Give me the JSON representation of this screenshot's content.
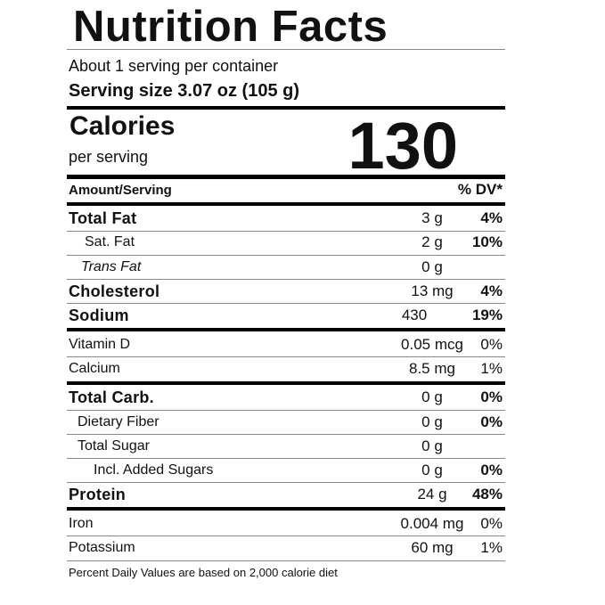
{
  "header": {
    "title": "Nutrition Facts",
    "servings": "About 1 serving per container",
    "serving_size": "Serving size 3.07 oz (105 g)"
  },
  "calories": {
    "label": "Calories",
    "per": "per serving",
    "value": 130
  },
  "columns": {
    "amount": "Amount/Serving",
    "dv": "% DV*"
  },
  "rows": [
    {
      "name": "Total Fat",
      "amount": "3 g",
      "dv": "4%"
    },
    {
      "name": "Sat. Fat",
      "amount": "2 g",
      "dv": "10%"
    },
    {
      "name": "Trans Fat",
      "amount": "0 g"
    },
    {
      "name": "Cholesterol",
      "amount": "13 mg",
      "dv": "4%"
    },
    {
      "name": "Sodium",
      "amount": "430",
      "dv": "19%"
    },
    {
      "name": "Vitamin D",
      "amount": "0.05 mcg",
      "dv": "0%"
    },
    {
      "name": "Calcium",
      "amount": "8.5 mg",
      "dv": "1%"
    },
    {
      "name": "Total Carb.",
      "amount": "0 g",
      "dv": "0%"
    },
    {
      "name": "Dietary Fiber",
      "amount": "0 g",
      "dv": "0%"
    },
    {
      "name": "Total Sugar",
      "amount": "0 g"
    },
    {
      "name": "Incl. Added Sugars",
      "amount": "0 g",
      "dv": "0%"
    },
    {
      "name": "Protein",
      "amount": "24 g",
      "dv": "48%"
    },
    {
      "name": "Iron",
      "amount": "0.004 mg",
      "dv": "0%"
    },
    {
      "name": "Potassium",
      "amount": "60 mg",
      "dv": "1%"
    }
  ],
  "footnote": "Percent Daily Values are based on 2,000 calorie diet"
}
